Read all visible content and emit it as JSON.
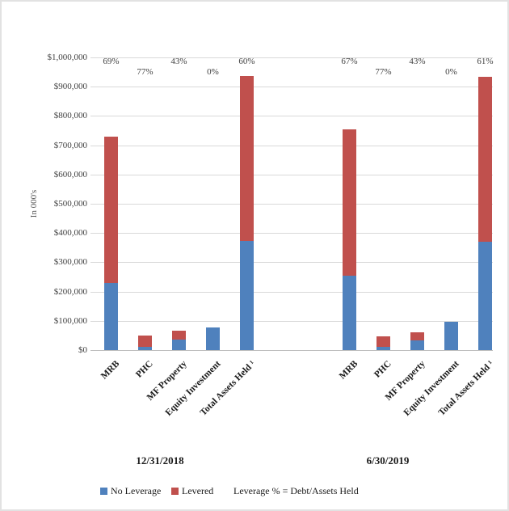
{
  "chart_data": {
    "type": "bar",
    "stacked": true,
    "title": "",
    "ylabel": "In 000's",
    "ylim": [
      0,
      1000000
    ],
    "grid": true,
    "y_ticks": [
      "$1,000,000",
      "$900,000",
      "$800,000",
      "$700,000",
      "$600,000",
      "$500,000",
      "$400,000",
      "$300,000",
      "$200,000",
      "$100,000",
      "$0"
    ],
    "categories": [
      "MRB",
      "PHC",
      "MF Property",
      "Equity Investment",
      "Total Assets Held ¹"
    ],
    "groups": [
      {
        "label": "12/31/2018",
        "series": [
          {
            "name": "No Leverage",
            "values": [
              230000,
              11000,
              36000,
              77000,
              372000
            ]
          },
          {
            "name": "Levered",
            "values": [
              500000,
              39000,
              29000,
              0,
              565000
            ]
          }
        ],
        "leverage_pct": [
          "69%",
          "77%",
          "43%",
          "0%",
          "60%"
        ]
      },
      {
        "label": "6/30/2019",
        "series": [
          {
            "name": "No Leverage",
            "values": [
              253000,
              11000,
              34000,
              96000,
              369000
            ]
          },
          {
            "name": "Levered",
            "values": [
              502000,
              35000,
              28000,
              0,
              565000
            ]
          }
        ],
        "leverage_pct": [
          "67%",
          "77%",
          "43%",
          "0%",
          "61%"
        ]
      }
    ],
    "legend": [
      {
        "label": "No Leverage",
        "color": "#4F81BD"
      },
      {
        "label": "Levered",
        "color": "#C0504D"
      }
    ],
    "legend_note": "Leverage % = Debt/Assets Held",
    "colors": {
      "no_leverage": "#4F81BD",
      "levered": "#C0504D",
      "gridline": "#D9D9D9"
    }
  }
}
